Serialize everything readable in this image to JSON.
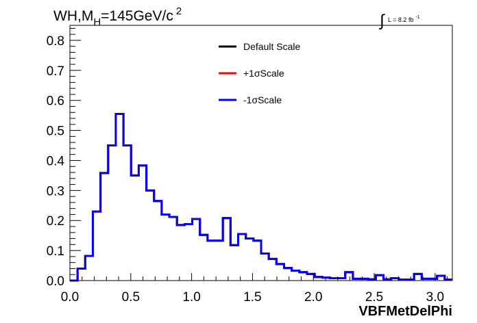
{
  "chart_data": {
    "type": "line",
    "title": "WH,M",
    "title_sub": "H",
    "title_rest": "=145GeV/c",
    "title_sup": "2",
    "lumi_label": "L = 8.2 fb",
    "lumi_sup": "-1",
    "xlabel": "VBFMetDelPhi",
    "ylabel": "",
    "xlim": [
      0,
      3.1416
    ],
    "ylim": [
      0,
      0.85
    ],
    "x_ticks": [
      0.0,
      0.5,
      1.0,
      1.5,
      2.0,
      2.5,
      3.0
    ],
    "x_tick_labels": [
      "0.0",
      "0.5",
      "1.0",
      "1.5",
      "2.0",
      "2.5",
      "3.0"
    ],
    "y_ticks": [
      0.0,
      0.1,
      0.2,
      0.3,
      0.4,
      0.5,
      0.6,
      0.7,
      0.8
    ],
    "y_tick_labels": [
      "0.0",
      "0.1",
      "0.2",
      "0.3",
      "0.4",
      "0.5",
      "0.6",
      "0.7",
      "0.8"
    ],
    "grid": false,
    "legend_position": "top-center",
    "bin_edges": [
      0.0,
      0.0628,
      0.1257,
      0.1885,
      0.2513,
      0.3142,
      0.377,
      0.4398,
      0.5027,
      0.5655,
      0.6283,
      0.6912,
      0.754,
      0.8168,
      0.8796,
      0.9425,
      1.0053,
      1.0681,
      1.131,
      1.1938,
      1.2566,
      1.3195,
      1.3823,
      1.4451,
      1.508,
      1.5708,
      1.6336,
      1.6965,
      1.7593,
      1.8221,
      1.885,
      1.9478,
      2.0106,
      2.0735,
      2.1363,
      2.1991,
      2.2619,
      2.3248,
      2.3876,
      2.4504,
      2.5133,
      2.5761,
      2.6389,
      2.7018,
      2.7646,
      2.8274,
      2.8903,
      2.9531,
      3.0159,
      3.0788,
      3.1416
    ],
    "series": [
      {
        "name": "Default Scale",
        "color": "#000000",
        "values": [
          0.0,
          0.04,
          0.082,
          0.23,
          0.358,
          0.45,
          0.555,
          0.45,
          0.35,
          0.383,
          0.3,
          0.265,
          0.22,
          0.212,
          0.185,
          0.188,
          0.205,
          0.152,
          0.133,
          0.133,
          0.208,
          0.118,
          0.155,
          0.14,
          0.133,
          0.09,
          0.072,
          0.055,
          0.042,
          0.033,
          0.028,
          0.022,
          0.012,
          0.01,
          0.008,
          0.008,
          0.028,
          0.006,
          0.006,
          0.004,
          0.018,
          0.004,
          0.008,
          0.003,
          0.003,
          0.022,
          0.006,
          0.006,
          0.016,
          0.003
        ]
      },
      {
        "name": "+1σScale",
        "color": "#ff0000",
        "values": [
          0.0,
          0.04,
          0.082,
          0.23,
          0.358,
          0.45,
          0.555,
          0.45,
          0.35,
          0.383,
          0.3,
          0.265,
          0.22,
          0.212,
          0.185,
          0.188,
          0.205,
          0.152,
          0.133,
          0.133,
          0.208,
          0.118,
          0.155,
          0.14,
          0.133,
          0.09,
          0.072,
          0.055,
          0.042,
          0.033,
          0.028,
          0.022,
          0.012,
          0.01,
          0.008,
          0.008,
          0.028,
          0.006,
          0.006,
          0.004,
          0.018,
          0.004,
          0.008,
          0.003,
          0.003,
          0.022,
          0.006,
          0.006,
          0.016,
          0.003
        ]
      },
      {
        "name": "-1σScale",
        "color": "#0000ff",
        "values": [
          0.0,
          0.04,
          0.082,
          0.23,
          0.358,
          0.45,
          0.555,
          0.45,
          0.35,
          0.383,
          0.3,
          0.265,
          0.22,
          0.212,
          0.185,
          0.188,
          0.205,
          0.152,
          0.133,
          0.133,
          0.208,
          0.118,
          0.155,
          0.14,
          0.133,
          0.09,
          0.072,
          0.055,
          0.042,
          0.033,
          0.028,
          0.022,
          0.012,
          0.01,
          0.008,
          0.008,
          0.028,
          0.006,
          0.006,
          0.004,
          0.018,
          0.004,
          0.008,
          0.003,
          0.003,
          0.022,
          0.006,
          0.006,
          0.016,
          0.003
        ]
      }
    ]
  }
}
